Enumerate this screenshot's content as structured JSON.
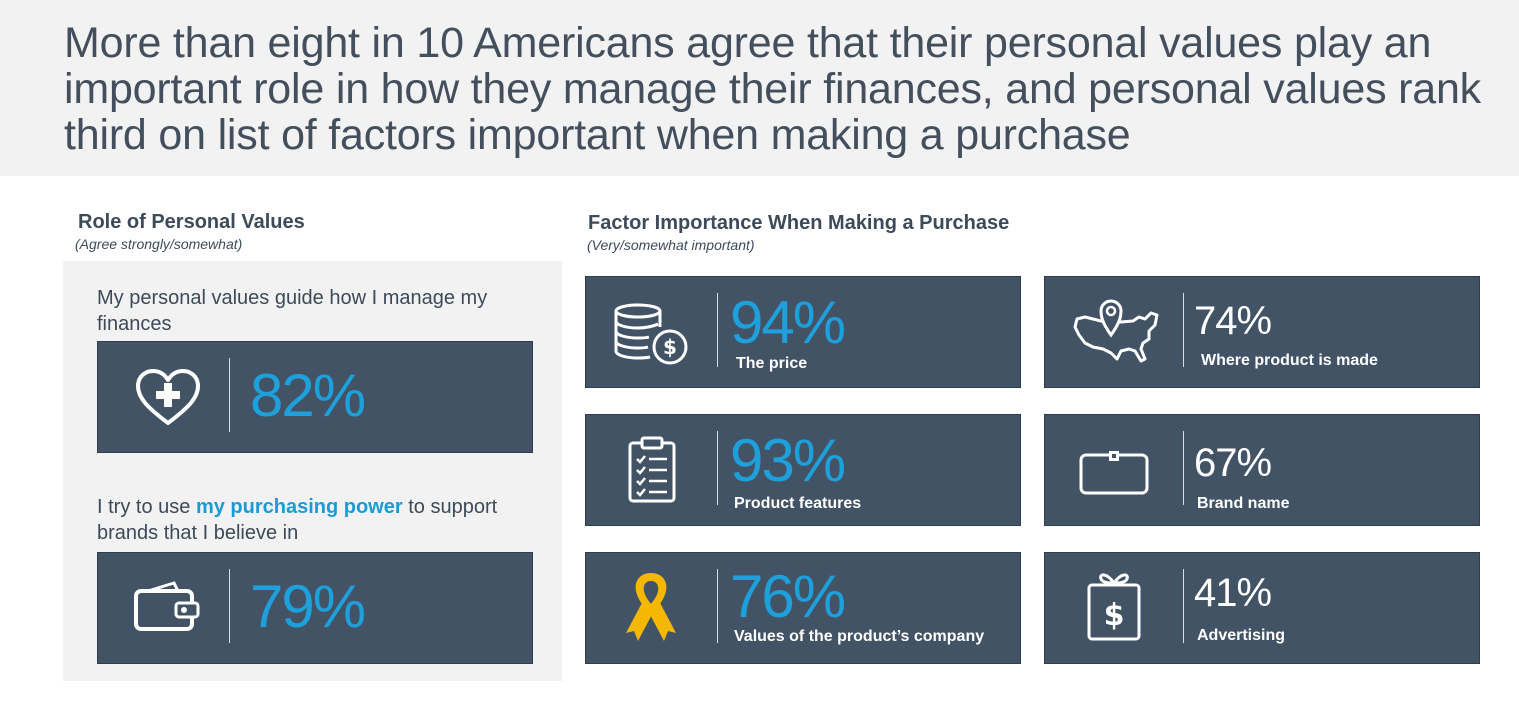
{
  "headline": "More than eight in 10 Americans agree that their personal values play an important role in how they manage their finances, and personal values rank third on list of factors important when making a purchase",
  "left_section": {
    "title": "Role of Personal Values",
    "subtitle": "(Agree strongly/somewhat)",
    "statement_1": "My personal values guide how I  manage my finances",
    "statement_2_before": "I try to use ",
    "statement_2_highlight": "my purchasing power",
    "statement_2_after": " to support brands that I believe in"
  },
  "right_section": {
    "title": "Factor Importance When Making a Purchase",
    "subtitle": "(Very/somewhat important)"
  },
  "colors": {
    "card": "#435366",
    "accent_blue": "#1ea0dc",
    "ribbon": "#f5b800",
    "header_bg": "#f2f2f2"
  },
  "chart_data": [
    {
      "type": "table",
      "title": "Role of Personal Values",
      "subtitle": "(Agree strongly/somewhat)",
      "rows": [
        {
          "label": "My personal values guide how I  manage my finances",
          "value": 82,
          "display": "82%",
          "icon": "heart-plus-icon"
        },
        {
          "label": "I try to use my purchasing power to support brands that I believe in",
          "value": 79,
          "display": "79%",
          "icon": "wallet-icon"
        }
      ]
    },
    {
      "type": "table",
      "title": "Factor Importance When Making a Purchase",
      "subtitle": "(Very/somewhat important)",
      "rows": [
        {
          "label": "The price",
          "value": 94,
          "display": "94%",
          "icon": "coins-icon"
        },
        {
          "label": "Where product is made",
          "value": 74,
          "display": "74%",
          "icon": "usa-map-pin-icon"
        },
        {
          "label": "Product features",
          "value": 93,
          "display": "93%",
          "icon": "clipboard-checklist-icon"
        },
        {
          "label": "Brand name",
          "value": 67,
          "display": "67%",
          "icon": "tag-icon"
        },
        {
          "label": "Values of the product’s company",
          "value": 76,
          "display": "76%",
          "icon": "ribbon-icon"
        },
        {
          "label": "Advertising",
          "value": 41,
          "display": "41%",
          "icon": "gift-dollar-icon"
        }
      ]
    }
  ]
}
